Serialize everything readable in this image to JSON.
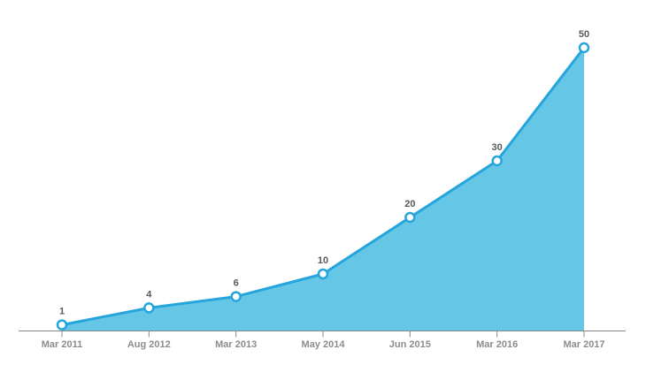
{
  "chart_data": {
    "type": "area",
    "title": "",
    "subtitle": "",
    "categories": [
      "Mar 2011",
      "Aug 2012",
      "Mar 2013",
      "May 2014",
      "Jun 2015",
      "Mar 2016",
      "Mar 2017"
    ],
    "values": [
      1,
      4,
      6,
      10,
      20,
      30,
      50
    ],
    "data_labels": [
      "1",
      "4",
      "6",
      "10",
      "20",
      "30",
      "50"
    ],
    "xlabel": "",
    "ylabel": "",
    "ylim": [
      0,
      50
    ],
    "grid": false,
    "legend_position": "none",
    "y_axis_visible": false,
    "x_axis_visible": true,
    "colors": {
      "line": "#25a5dc",
      "area_fill": "#66c6e6",
      "marker_fill": "#ffffff",
      "marker_stroke": "#25a5dc",
      "axis_line": "#888888",
      "tick_label": "#8c8c8c",
      "value_label": "#595959",
      "background": "#ffffff"
    }
  }
}
